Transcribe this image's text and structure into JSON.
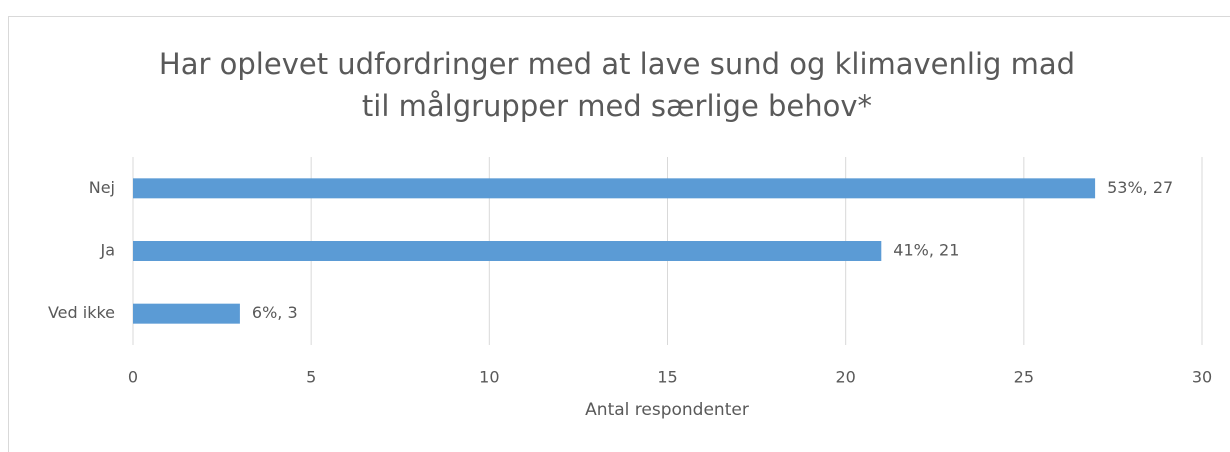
{
  "chart_data": {
    "type": "bar",
    "orientation": "horizontal",
    "title": [
      "Har oplevet udfordringer med at lave sund og klimavenlig mad",
      "til målgrupper med særlige behov*"
    ],
    "categories": [
      "Nej",
      "Ja",
      "Ved ikke"
    ],
    "values": [
      27,
      21,
      3
    ],
    "value_labels": [
      "53%, 27",
      "41%, 21",
      "6%, 3"
    ],
    "color": "#5b9bd5",
    "xlim": [
      0,
      30
    ],
    "xticks": [
      0,
      5,
      10,
      15,
      20,
      25,
      30
    ],
    "xlabel": "Antal respondenter",
    "grid": true
  }
}
